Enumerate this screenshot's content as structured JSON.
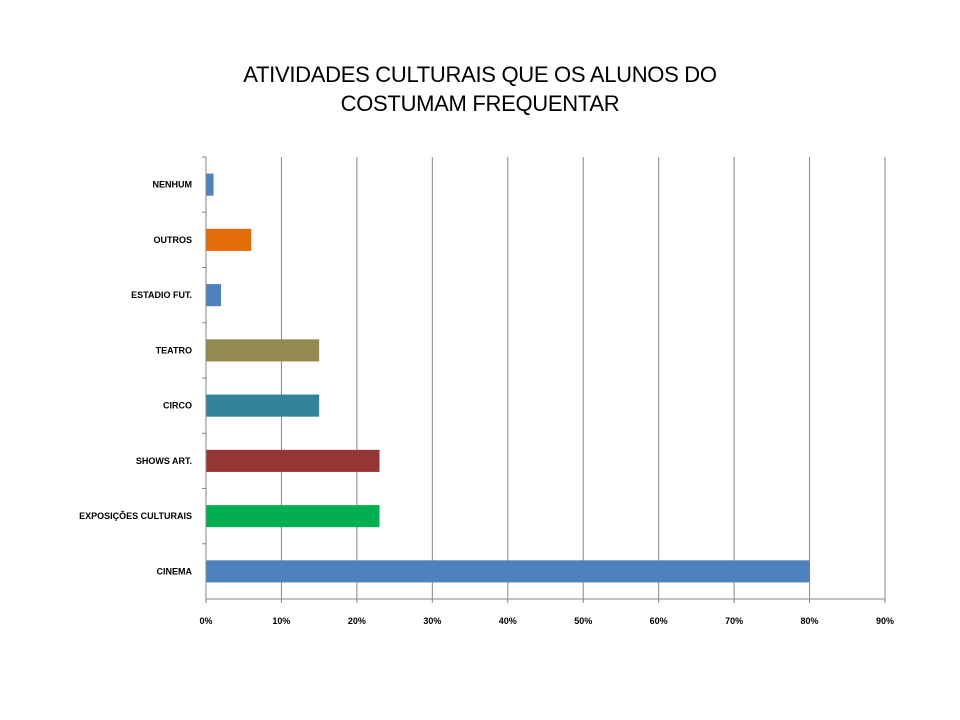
{
  "chart_data": {
    "type": "bar",
    "orientation": "horizontal",
    "title_lines": [
      "ATIVIDADES CULTURAIS QUE  OS ALUNOS DO",
      "COSTUMAM FREQUENTAR"
    ],
    "categories": [
      "NENHUM",
      "OUTROS",
      "ESTADIO FUT.",
      "TEATRO",
      "CIRCO",
      "SHOWS ART.",
      "EXPOSIÇÕES CULTURAIS",
      "CINEMA"
    ],
    "values": [
      1,
      6,
      2,
      15,
      15,
      23,
      23,
      80
    ],
    "colors": [
      "#4F81BD",
      "#E36C09",
      "#4F81BD",
      "#938953",
      "#31849B",
      "#943634",
      "#00B050",
      "#4F81BD"
    ],
    "xlim": [
      0,
      90
    ],
    "xticks": [
      "0%",
      "10%",
      "20%",
      "30%",
      "40%",
      "50%",
      "60%",
      "70%",
      "80%",
      "90%"
    ],
    "xlabel": "",
    "ylabel": "",
    "grid": true,
    "legend": "none"
  }
}
